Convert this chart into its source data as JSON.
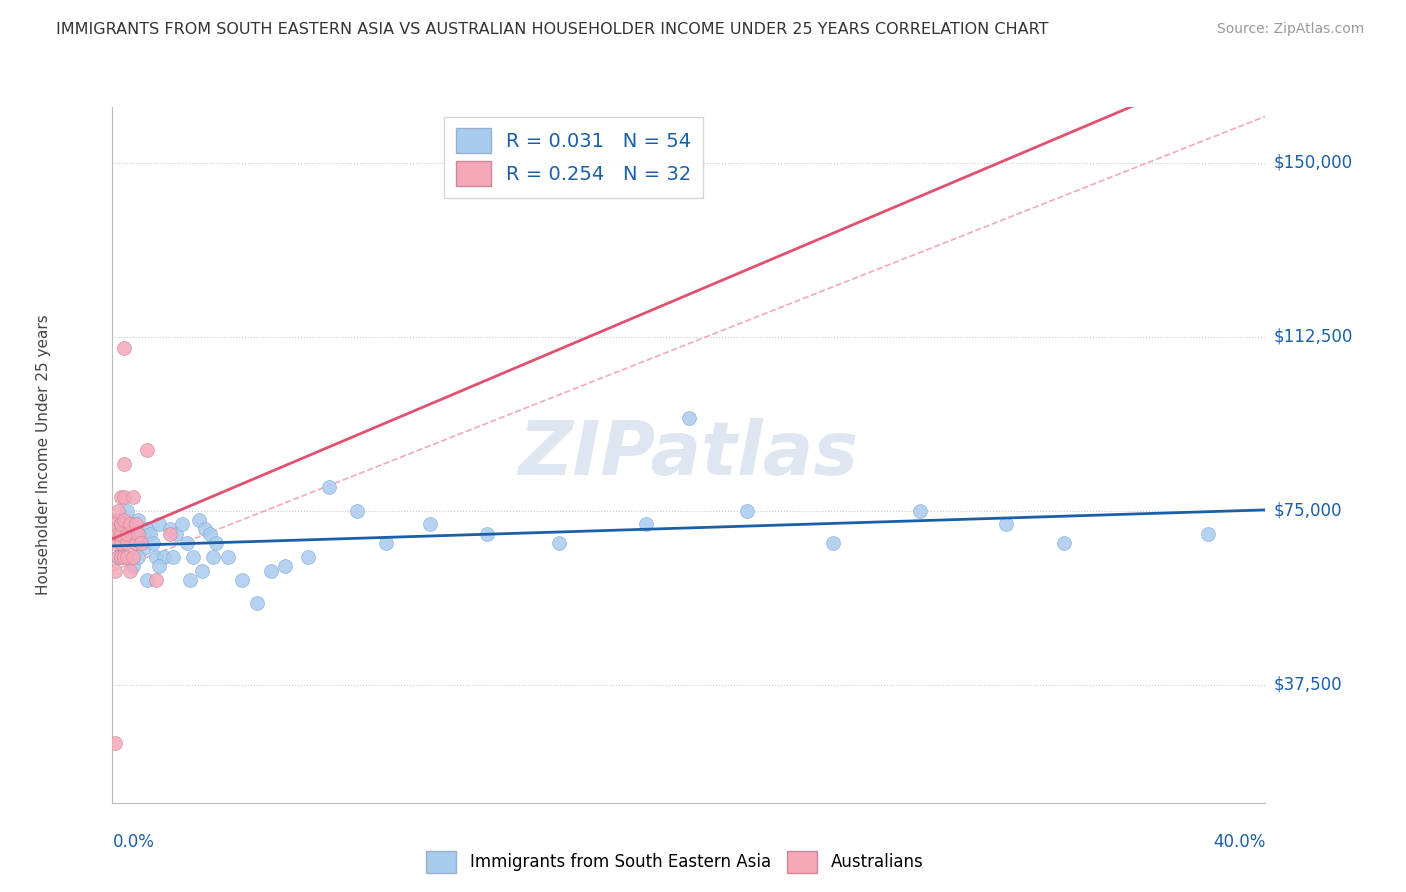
{
  "title": "IMMIGRANTS FROM SOUTH EASTERN ASIA VS AUSTRALIAN HOUSEHOLDER INCOME UNDER 25 YEARS CORRELATION CHART",
  "source": "Source: ZipAtlas.com",
  "ylabel": "Householder Income Under 25 years",
  "yticks": [
    37500,
    75000,
    112500,
    150000
  ],
  "ytick_labels": [
    "$37,500",
    "$75,000",
    "$112,500",
    "$150,000"
  ],
  "xmin": 0.0,
  "xmax": 0.4,
  "ymin": 12000,
  "ymax": 162000,
  "legend_blue_R": "0.031",
  "legend_blue_N": "54",
  "legend_pink_R": "0.254",
  "legend_pink_N": "32",
  "blue_color": "#a8ccee",
  "pink_color": "#f4a8b8",
  "trend_blue_color": "#1a5fa8",
  "trend_pink_color": "#e05070",
  "ref_line_color": "#f0a0b0",
  "watermark_color": "#c8d8e8",
  "blue_scatter_x": [
    0.001,
    0.002,
    0.003,
    0.004,
    0.005,
    0.006,
    0.007,
    0.008,
    0.009,
    0.01,
    0.011,
    0.012,
    0.013,
    0.014,
    0.015,
    0.016,
    0.018,
    0.02,
    0.022,
    0.024,
    0.026,
    0.028,
    0.03,
    0.032,
    0.034,
    0.036,
    0.04,
    0.045,
    0.05,
    0.055,
    0.06,
    0.068,
    0.075,
    0.085,
    0.095,
    0.11,
    0.13,
    0.155,
    0.185,
    0.2,
    0.22,
    0.25,
    0.28,
    0.31,
    0.33,
    0.38,
    0.007,
    0.009,
    0.012,
    0.016,
    0.021,
    0.027,
    0.031,
    0.035
  ],
  "blue_scatter_y": [
    70000,
    65000,
    72000,
    68000,
    75000,
    70000,
    72000,
    68000,
    73000,
    70000,
    67000,
    71000,
    70000,
    68000,
    65000,
    72000,
    65000,
    71000,
    70000,
    72000,
    68000,
    65000,
    73000,
    71000,
    70000,
    68000,
    65000,
    60000,
    55000,
    62000,
    63000,
    65000,
    80000,
    75000,
    68000,
    72000,
    70000,
    68000,
    72000,
    95000,
    75000,
    68000,
    75000,
    72000,
    68000,
    70000,
    63000,
    65000,
    60000,
    63000,
    65000,
    60000,
    62000,
    65000
  ],
  "pink_scatter_x": [
    0.001,
    0.001,
    0.001,
    0.001,
    0.002,
    0.002,
    0.002,
    0.002,
    0.003,
    0.003,
    0.003,
    0.003,
    0.003,
    0.004,
    0.004,
    0.004,
    0.004,
    0.004,
    0.005,
    0.005,
    0.005,
    0.006,
    0.006,
    0.007,
    0.007,
    0.008,
    0.008,
    0.009,
    0.01,
    0.012,
    0.015,
    0.02
  ],
  "pink_scatter_y": [
    25000,
    62000,
    68000,
    72000,
    65000,
    70000,
    73000,
    75000,
    65000,
    68000,
    70000,
    72000,
    78000,
    65000,
    73000,
    78000,
    85000,
    110000,
    65000,
    68000,
    70000,
    62000,
    72000,
    65000,
    78000,
    68000,
    72000,
    70000,
    68000,
    88000,
    60000,
    70000
  ]
}
